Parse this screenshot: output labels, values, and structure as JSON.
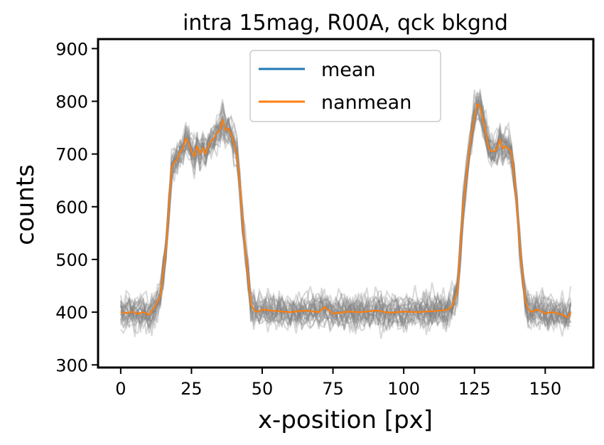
{
  "chart_data": {
    "type": "line",
    "title": "intra 15mag, R00A, qck bkgnd",
    "xlabel": "x-position [px]",
    "ylabel": "counts",
    "xlim": [
      -8,
      167
    ],
    "ylim": [
      295,
      918
    ],
    "xticks": [
      0,
      25,
      50,
      75,
      100,
      125,
      150
    ],
    "yticks": [
      300,
      400,
      500,
      600,
      700,
      800,
      900
    ],
    "grid": false,
    "legend_placement": "top-center",
    "individual_profiles": {
      "color": "#808080",
      "count": 25,
      "description_visible": false
    },
    "series": [
      {
        "name": "mean",
        "color": "#1f77b4",
        "x": [
          0,
          2,
          4,
          6,
          8,
          10,
          12,
          14,
          16,
          17,
          18,
          19,
          20,
          21,
          22,
          23,
          24,
          25,
          26,
          27,
          28,
          29,
          30,
          31,
          32,
          33,
          34,
          35,
          36,
          37,
          38,
          39,
          40,
          41,
          42,
          43,
          44,
          45,
          46,
          47,
          48,
          50,
          55,
          60,
          65,
          70,
          72,
          75,
          80,
          85,
          90,
          95,
          100,
          105,
          110,
          115,
          117,
          119,
          120,
          121,
          122,
          123,
          124,
          125,
          126,
          127,
          128,
          129,
          130,
          131,
          132,
          133,
          134,
          135,
          136,
          137,
          138,
          139,
          140,
          141,
          142,
          143,
          144,
          145,
          147,
          150,
          153,
          156,
          158,
          159
        ],
        "values": [
          400,
          398,
          401,
          397,
          400,
          395,
          410,
          430,
          520,
          600,
          675,
          685,
          690,
          705,
          710,
          730,
          720,
          705,
          695,
          715,
          700,
          712,
          700,
          715,
          725,
          730,
          740,
          745,
          765,
          745,
          748,
          738,
          720,
          700,
          650,
          580,
          520,
          470,
          415,
          405,
          400,
          405,
          402,
          400,
          403,
          400,
          410,
          397,
          401,
          400,
          403,
          399,
          401,
          400,
          402,
          404,
          410,
          440,
          520,
          600,
          650,
          700,
          740,
          770,
          795,
          790,
          765,
          740,
          712,
          705,
          705,
          710,
          728,
          710,
          715,
          710,
          705,
          660,
          600,
          530,
          470,
          420,
          405,
          400,
          405,
          398,
          400,
          395,
          390,
          400
        ]
      },
      {
        "name": "nanmean",
        "color": "#ff7f0e",
        "x": [
          0,
          2,
          4,
          6,
          8,
          10,
          12,
          14,
          16,
          17,
          18,
          19,
          20,
          21,
          22,
          23,
          24,
          25,
          26,
          27,
          28,
          29,
          30,
          31,
          32,
          33,
          34,
          35,
          36,
          37,
          38,
          39,
          40,
          41,
          42,
          43,
          44,
          45,
          46,
          47,
          48,
          50,
          55,
          60,
          65,
          70,
          72,
          75,
          80,
          85,
          90,
          95,
          100,
          105,
          110,
          115,
          117,
          119,
          120,
          121,
          122,
          123,
          124,
          125,
          126,
          127,
          128,
          129,
          130,
          131,
          132,
          133,
          134,
          135,
          136,
          137,
          138,
          139,
          140,
          141,
          142,
          143,
          144,
          145,
          147,
          150,
          153,
          156,
          158,
          159
        ],
        "values": [
          400,
          398,
          401,
          397,
          400,
          395,
          410,
          430,
          520,
          600,
          675,
          685,
          690,
          705,
          710,
          730,
          720,
          705,
          695,
          715,
          700,
          712,
          700,
          715,
          725,
          730,
          740,
          745,
          765,
          745,
          748,
          738,
          720,
          700,
          650,
          580,
          520,
          470,
          415,
          405,
          400,
          405,
          402,
          400,
          403,
          400,
          410,
          397,
          401,
          400,
          403,
          399,
          401,
          400,
          402,
          404,
          410,
          440,
          520,
          600,
          650,
          700,
          740,
          770,
          795,
          790,
          765,
          740,
          712,
          705,
          705,
          710,
          728,
          710,
          715,
          710,
          705,
          660,
          600,
          530,
          470,
          420,
          405,
          400,
          405,
          398,
          400,
          395,
          390,
          400
        ]
      }
    ]
  }
}
